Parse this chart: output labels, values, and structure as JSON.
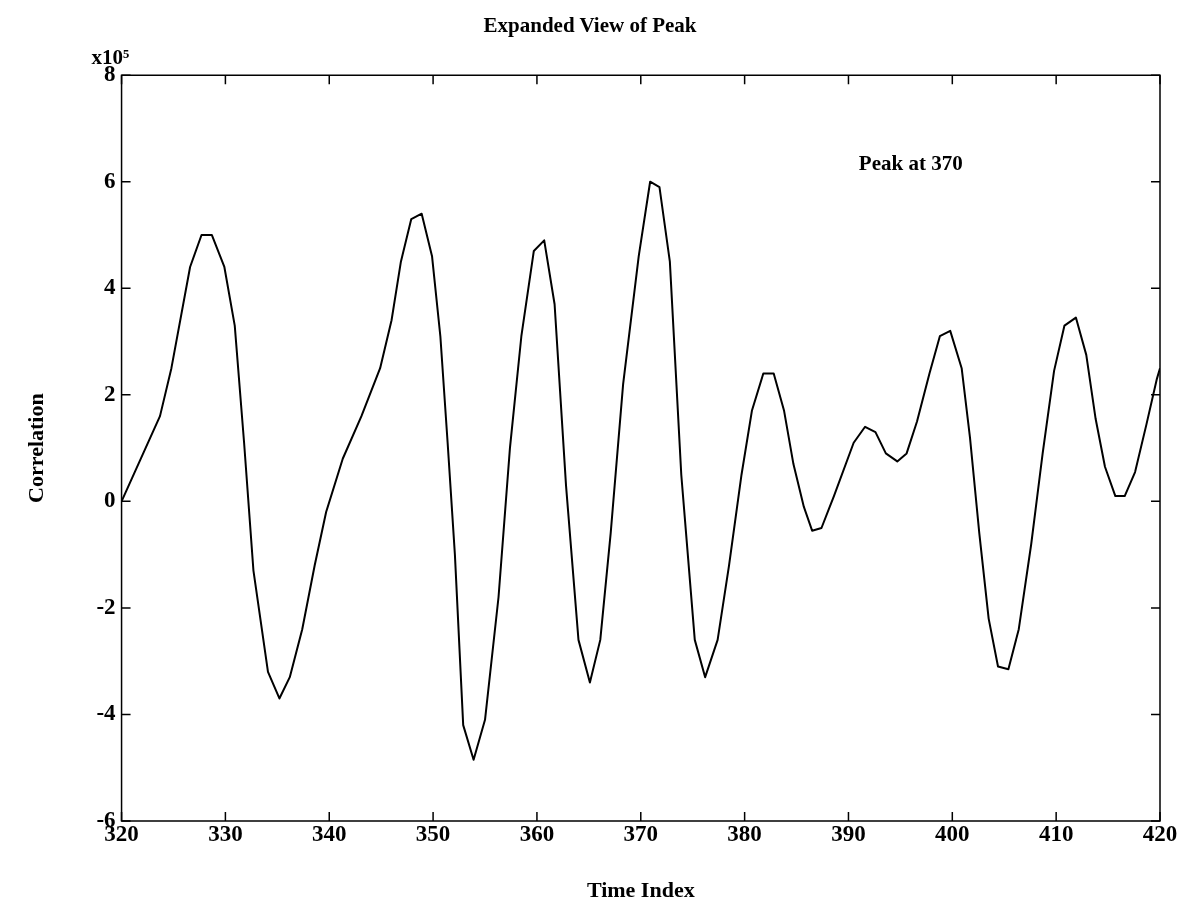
{
  "chart_data": {
    "type": "line",
    "title": "Expanded View of Peak",
    "xlabel": "Time Index",
    "ylabel": "Correlation",
    "annotations": [
      "x10⁵",
      "Peak at 370"
    ],
    "xlim": [
      320,
      420
    ],
    "xticks": [
      320,
      330,
      340,
      350,
      360,
      370,
      380,
      390,
      400,
      410,
      420
    ],
    "ylim": [
      -6,
      8
    ],
    "yticks": [
      -6,
      -4,
      -2,
      0,
      2,
      4,
      6,
      8
    ],
    "grid": false,
    "legend": false,
    "marker": "none",
    "line_style": "solid",
    "series": [
      {
        "color": "#000000",
        "x": [
          320,
          323.7,
          324.8,
          326.6,
          327.7,
          328.7,
          329.9,
          330.9,
          331.8,
          332.7,
          334.1,
          335.2,
          336.2,
          337.4,
          338.6,
          339.7,
          341.3,
          343.1,
          344.9,
          346.0,
          346.9,
          347.9,
          348.9,
          349.9,
          350.7,
          351.4,
          352.1,
          352.9,
          353.9,
          355.0,
          356.3,
          357.4,
          358.5,
          359.7,
          360.7,
          361.7,
          362.8,
          364.0,
          365.1,
          366.1,
          367.1,
          368.3,
          369.8,
          370.9,
          371.8,
          372.8,
          373.9,
          375.2,
          376.2,
          377.4,
          378.5,
          379.7,
          380.7,
          381.8,
          382.8,
          383.8,
          384.7,
          385.7,
          386.5,
          387.4,
          388.6,
          390.5,
          391.6,
          392.6,
          393.6,
          394.7,
          395.6,
          396.6,
          397.8,
          398.8,
          399.8,
          400.9,
          401.7,
          402.6,
          403.5,
          404.4,
          405.4,
          406.4,
          407.6,
          408.7,
          409.8,
          410.8,
          411.9,
          412.9,
          413.8,
          414.7,
          415.7,
          416.6,
          417.6,
          418.7,
          419.7,
          420
        ],
        "values": [
          0,
          1.6,
          2.5,
          4.4,
          5.0,
          5.0,
          4.4,
          3.3,
          1.1,
          -1.3,
          -3.2,
          -3.7,
          -3.3,
          -2.4,
          -1.2,
          -0.2,
          0.8,
          1.6,
          2.5,
          3.4,
          4.5,
          5.3,
          5.4,
          4.6,
          3.1,
          1.1,
          -1.0,
          -4.2,
          -4.85,
          -4.1,
          -1.8,
          1.0,
          3.1,
          4.7,
          4.9,
          3.7,
          0.3,
          -2.6,
          -3.4,
          -2.6,
          -0.6,
          2.2,
          4.6,
          6.0,
          5.9,
          4.5,
          0.5,
          -2.6,
          -3.3,
          -2.6,
          -1.2,
          0.5,
          1.7,
          2.4,
          2.4,
          1.7,
          0.7,
          -0.1,
          -0.55,
          -0.5,
          0.1,
          1.1,
          1.4,
          1.3,
          0.9,
          0.75,
          0.9,
          1.5,
          2.4,
          3.1,
          3.2,
          2.5,
          1.2,
          -0.6,
          -2.2,
          -3.1,
          -3.15,
          -2.4,
          -0.8,
          0.9,
          2.45,
          3.3,
          3.45,
          2.75,
          1.55,
          0.65,
          0.1,
          0.1,
          0.55,
          1.45,
          2.3,
          2.5
        ]
      }
    ]
  }
}
